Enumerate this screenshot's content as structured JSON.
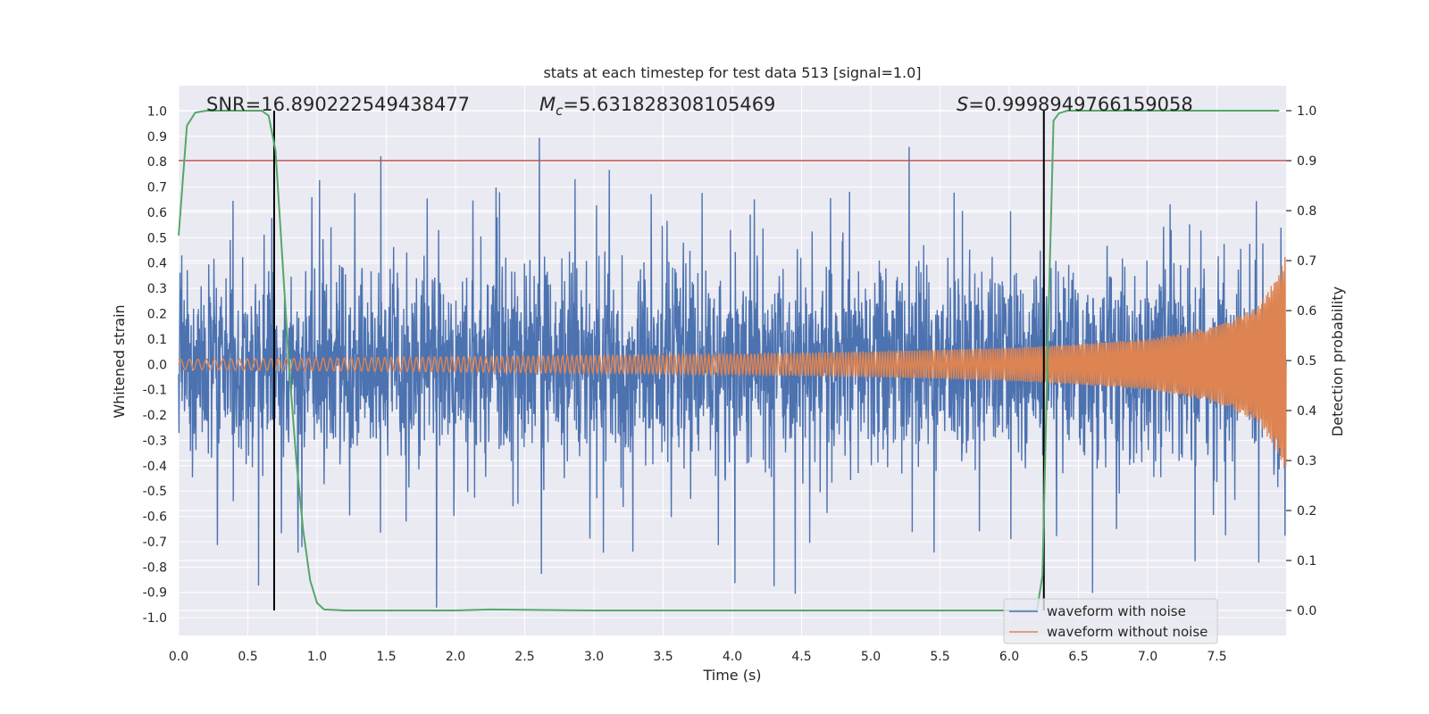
{
  "chart_data": {
    "type": "line",
    "title": "stats at each timestep for test data 513 [signal=1.0]",
    "xlabel": "Time (s)",
    "ylabel": "Whitened strain",
    "y2label": "Detection probability",
    "xlim": [
      0.0,
      8.0
    ],
    "ylim": [
      -1.07,
      1.1
    ],
    "y2lim": [
      -0.05,
      1.05
    ],
    "xticks": [
      0.0,
      0.5,
      1.0,
      1.5,
      2.0,
      2.5,
      3.0,
      3.5,
      4.0,
      4.5,
      5.0,
      5.5,
      6.0,
      6.5,
      7.0,
      7.5
    ],
    "xtick_labels": [
      "0.0",
      "0.5",
      "1.0",
      "1.5",
      "2.0",
      "2.5",
      "3.0",
      "3.5",
      "4.0",
      "4.5",
      "5.0",
      "5.5",
      "6.0",
      "6.5",
      "7.0",
      "7.5"
    ],
    "yticks": [
      1.0,
      0.9,
      0.8,
      0.7,
      0.6,
      0.5,
      0.4,
      0.3,
      0.2,
      0.1,
      0.0,
      -0.1,
      -0.2,
      -0.3,
      -0.4,
      -0.5,
      -0.6,
      -0.7,
      -0.8,
      -0.9,
      -1.0
    ],
    "ytick_labels": [
      "1.0",
      "0.9",
      "0.8",
      "0.7",
      "0.6",
      "0.5",
      "0.4",
      "0.3",
      "0.2",
      "0.1",
      "0.0",
      "-0.1",
      "-0.2",
      "-0.3",
      "-0.4",
      "-0.5",
      "-0.6",
      "-0.7",
      "-0.8",
      "-0.9",
      "-1.0"
    ],
    "y2ticks": [
      1.0,
      0.9,
      0.8,
      0.7,
      0.6,
      0.5,
      0.4,
      0.3,
      0.2,
      0.1,
      0.0
    ],
    "y2tick_labels": [
      "1.0",
      "0.9",
      "0.8",
      "0.7",
      "0.6",
      "0.5",
      "0.4",
      "0.3",
      "0.2",
      "0.1",
      "0.0"
    ],
    "grid": true,
    "legend_position": "bottom-right",
    "series": [
      {
        "name": "waveform with noise",
        "color": "#4c72b0",
        "axis": "left",
        "description_values": "dense noisy strain, typical amplitude about ±0.45, occasional spikes to about ±0.95, t from 0 to 8 s"
      },
      {
        "name": "waveform without noise",
        "color": "#dd8452",
        "axis": "left",
        "envelope": {
          "t": [
            0.0,
            1.0,
            2.0,
            3.0,
            4.0,
            5.0,
            6.0,
            6.5,
            7.0,
            7.5,
            7.8,
            7.95,
            8.0
          ],
          "amplitude": [
            0.02,
            0.025,
            0.03,
            0.035,
            0.04,
            0.05,
            0.065,
            0.08,
            0.1,
            0.15,
            0.23,
            0.36,
            0.44
          ]
        }
      },
      {
        "name": "detection probability",
        "color": "#55a868",
        "axis": "right",
        "x": [
          0.0,
          0.06,
          0.12,
          0.2,
          0.3,
          0.4,
          0.5,
          0.6,
          0.65,
          0.7,
          0.75,
          0.8,
          0.85,
          0.9,
          0.95,
          1.0,
          1.05,
          1.2,
          2.0,
          2.25,
          3.0,
          4.0,
          5.0,
          6.0,
          6.2,
          6.24,
          6.28,
          6.32,
          6.36,
          6.42,
          6.6,
          7.0,
          7.5,
          7.95
        ],
        "y": [
          0.75,
          0.97,
          0.996,
          1.0,
          1.0,
          1.0,
          1.0,
          1.0,
          0.99,
          0.92,
          0.7,
          0.48,
          0.3,
          0.16,
          0.06,
          0.015,
          0.002,
          0.0,
          0.0,
          0.002,
          0.0,
          0.0,
          0.0,
          0.0,
          0.0,
          0.07,
          0.55,
          0.98,
          0.995,
          1.0,
          1.0,
          1.0,
          1.0,
          1.0
        ]
      }
    ],
    "threshold_line": {
      "y2": 0.9,
      "color": "#c44e52"
    },
    "vertical_lines": [
      {
        "x": 0.69,
        "y2_from": 0.0,
        "y2_to": 1.0,
        "color": "#000000"
      },
      {
        "x": 6.25,
        "y2_from": 0.0,
        "y2_to": 1.0,
        "color": "#000000"
      }
    ],
    "annotations": [
      {
        "text": "SNR=16.890222549438477",
        "x": 0.2
      },
      {
        "text": "=5.631828308105469",
        "symbol": "M",
        "subscript": "c",
        "x": 2.6
      },
      {
        "text": "=0.9998949766159058",
        "symbol": "S",
        "x": 5.6
      }
    ]
  }
}
